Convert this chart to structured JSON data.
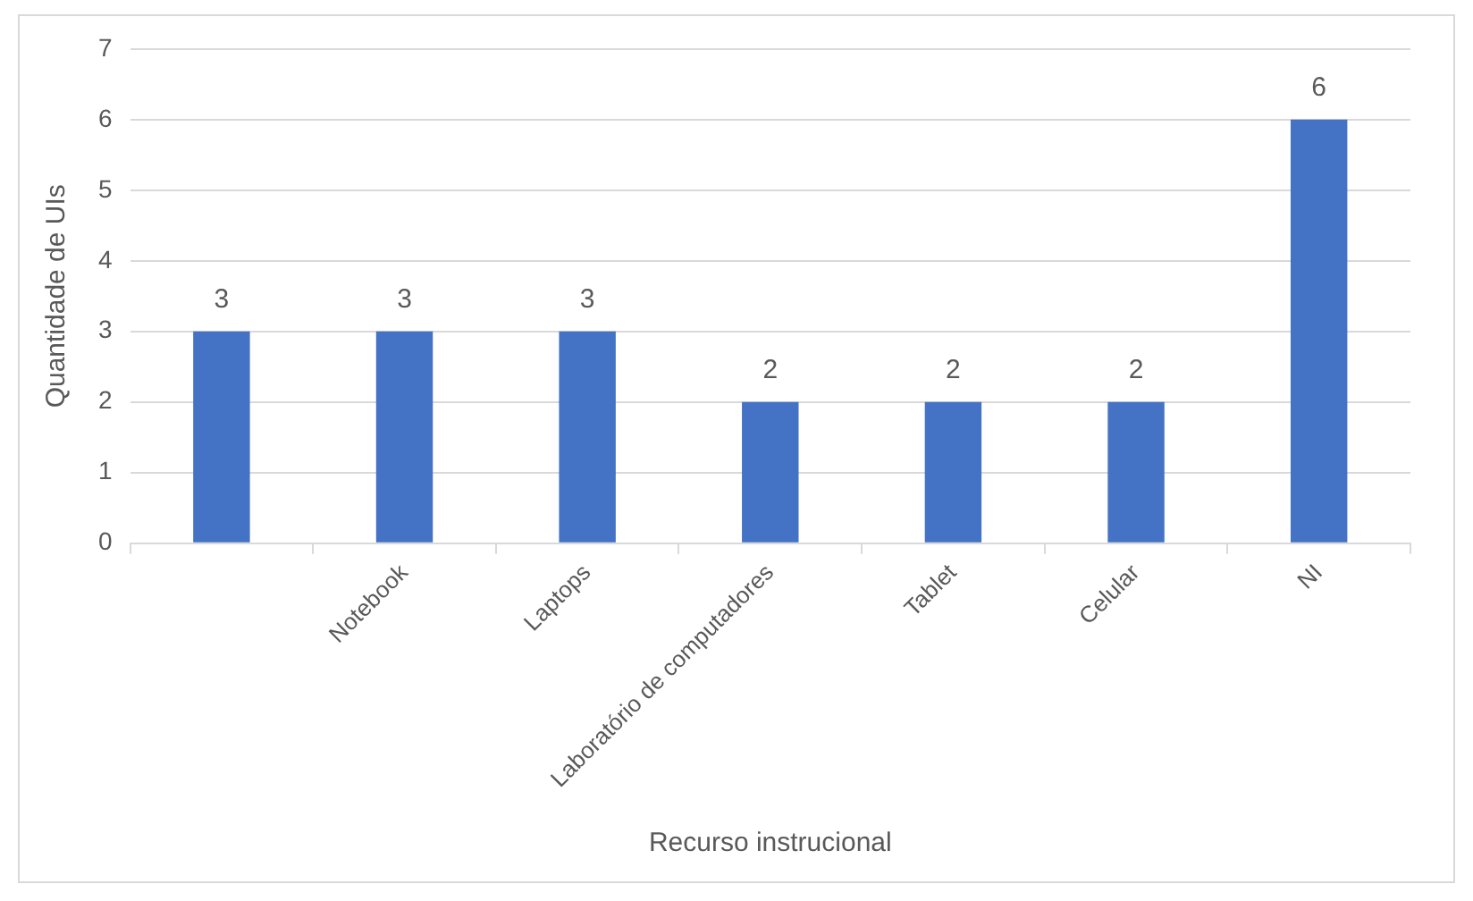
{
  "chart_data": {
    "type": "bar",
    "xlabel": "Recurso instrucional",
    "ylabel": "Quantidade de UIs",
    "categories": [
      null,
      "Notebook",
      "Laptops",
      "Laboratório de computadores",
      "Tablet",
      "Celular",
      "NI"
    ],
    "values": [
      3,
      3,
      3,
      2,
      2,
      2,
      6
    ],
    "color": "#4472c4",
    "ylim": [
      0,
      7
    ],
    "yticks": [
      0,
      1,
      2,
      3,
      4,
      5,
      6,
      7
    ],
    "grid": "y",
    "data_labels": true
  }
}
